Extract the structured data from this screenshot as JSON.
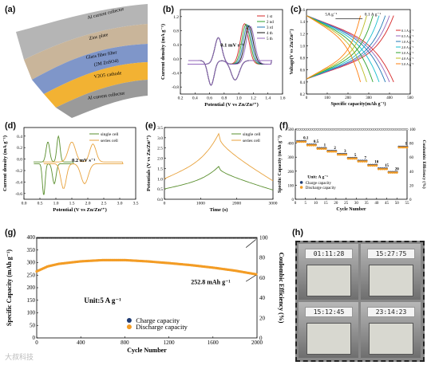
{
  "panel_labels": {
    "a": "(a)",
    "b": "(b)",
    "c": "(c)",
    "d": "(d)",
    "e": "(e)",
    "f": "(f)",
    "g": "(g)",
    "h": "(h)"
  },
  "schematic": {
    "layers": [
      "Al current collector",
      "Zinc plate",
      "Glass fiber filter",
      "(2M ZnSO4)",
      "V2O5 cathode",
      "Al current collector"
    ],
    "colors": {
      "al": "#9a9a9a",
      "zinc": "#c9b59a",
      "glass": "#7f96c9",
      "cathode": "#f2b233"
    }
  },
  "watermark": "大叔科技",
  "chart_data": [
    {
      "id": "b",
      "type": "line",
      "xlabel": "Potential (V vs Zn/Zn²⁺)",
      "ylabel": "Current density (mA g⁻¹)",
      "xlim": [
        0.2,
        1.6
      ],
      "ylim": [
        -1.0,
        1.4
      ],
      "xticks": [
        "0.2",
        "0.4",
        "0.6",
        "0.8",
        "1.0",
        "1.2",
        "1.4",
        "1.6"
      ],
      "yticks": [
        "-0.8",
        "-0.4",
        "0.0",
        "0.4",
        "0.8",
        "1.2"
      ],
      "annotation": "0.1 mV s⁻¹",
      "legend_position": "top-right",
      "series": [
        {
          "name": "1 st",
          "color": "#d62728"
        },
        {
          "name": "2 nd",
          "color": "#2ca02c"
        },
        {
          "name": "3 rd",
          "color": "#1f77b4"
        },
        {
          "name": "4 th",
          "color": "#111111"
        },
        {
          "name": "5 th",
          "color": "#9467bd"
        }
      ]
    },
    {
      "id": "c",
      "type": "line",
      "xlabel": "Specific capacity(mAh g⁻¹)",
      "ylabel": "Voltage(V vs Zn/Zn²⁺)",
      "xlim": [
        0,
        500
      ],
      "ylim": [
        0.2,
        1.6
      ],
      "xticks": [
        "0",
        "100",
        "200",
        "300",
        "400",
        "500"
      ],
      "yticks": [
        "0.2",
        "0.4",
        "0.6",
        "0.8",
        "1.0",
        "1.2",
        "1.4",
        "1.6"
      ],
      "annotation_left": "5A g⁻¹",
      "annotation_right": "0.1 A g⁻¹",
      "legend_position": "right",
      "series": [
        {
          "name": "0.1 A g⁻¹",
          "color": "#d62728",
          "cap": 420
        },
        {
          "name": "0.5 A g⁻¹",
          "color": "#9467bd",
          "cap": 400
        },
        {
          "name": "1.0 A g⁻¹",
          "color": "#1f77b4",
          "cap": 380
        },
        {
          "name": "2.0 A g⁻¹",
          "color": "#17becf",
          "cap": 350
        },
        {
          "name": "3.0 A g⁻¹",
          "color": "#2ca02c",
          "cap": 320
        },
        {
          "name": "4.0 A g⁻¹",
          "color": "#bcbd22",
          "cap": 290
        },
        {
          "name": "5.0 A g⁻¹",
          "color": "#ff7f0e",
          "cap": 260
        }
      ]
    },
    {
      "id": "d",
      "type": "line",
      "xlabel": "Potential (V vs Zn/Zn²⁺)",
      "ylabel": "Current density (mA g⁻¹)",
      "xlim": [
        0.0,
        3.5
      ],
      "ylim": [
        -0.7,
        0.55
      ],
      "xticks": [
        "0.0",
        "0.5",
        "1.0",
        "1.5",
        "2.0",
        "2.5",
        "3.0",
        "3.5"
      ],
      "yticks": [
        "-0.6",
        "-0.4",
        "-0.2",
        "0.0",
        "0.2",
        "0.4"
      ],
      "annotation": "0.2 mV s⁻¹",
      "legend_position": "top-right",
      "series": [
        {
          "name": "single cell",
          "color": "#5a8f2e"
        },
        {
          "name": "series cell",
          "color": "#e8a23c"
        }
      ]
    },
    {
      "id": "e",
      "type": "line",
      "xlabel": "Time (s)",
      "ylabel": "Potentials (V vs Zn/Zn²⁺)",
      "xlim": [
        0,
        3000
      ],
      "ylim": [
        0.0,
        3.5
      ],
      "xticks": [
        "0",
        "1000",
        "2000",
        "3000"
      ],
      "yticks": [
        "0.0",
        "0.5",
        "1.0",
        "1.5",
        "2.0",
        "2.5",
        "3.0",
        "3.5"
      ],
      "legend_position": "top-right",
      "series": [
        {
          "name": "single cell",
          "color": "#5a8f2e",
          "peak": 1.6,
          "start": 0.5
        },
        {
          "name": "series cell",
          "color": "#e8a23c",
          "peak": 3.2,
          "start": 1.0
        }
      ]
    },
    {
      "id": "f",
      "type": "scatter",
      "xlabel": "Cycle Number",
      "ylabel": "Specific Capacity (mAh g⁻¹)",
      "y2label": "Coulombic Efficiency (%)",
      "xlim": [
        0,
        55
      ],
      "ylim": [
        0,
        500
      ],
      "y2lim": [
        0,
        100
      ],
      "xticks": [
        "0",
        "5",
        "10",
        "15",
        "20",
        "25",
        "30",
        "35",
        "40",
        "45",
        "50",
        "55"
      ],
      "yticks": [
        "0",
        "100",
        "200",
        "300",
        "400",
        "500"
      ],
      "y2ticks": [
        "0",
        "20",
        "40",
        "60",
        "80",
        "100"
      ],
      "unit_text": "Unit: A g⁻¹",
      "rate_labels": [
        "0.1",
        "0.5",
        "1",
        "2",
        "3",
        "5",
        "7",
        "10",
        "15",
        "20",
        "1"
      ],
      "rate_capacity": [
        410,
        385,
        360,
        340,
        318,
        290,
        270,
        240,
        215,
        190,
        370
      ],
      "legend_position": "bottom-left",
      "series": [
        {
          "name": "Charge capacity",
          "color": "#1f3b73"
        },
        {
          "name": "Discharge capacity",
          "color": "#f39c25"
        }
      ]
    },
    {
      "id": "g",
      "type": "scatter",
      "xlabel": "Cycle Number",
      "ylabel": "Specific Capacity (mAh g⁻¹)",
      "y2label": "Coulombic Efficiency (%)",
      "xlim": [
        0,
        2000
      ],
      "ylim": [
        0,
        400
      ],
      "y2lim": [
        0,
        100
      ],
      "xticks": [
        "0",
        "400",
        "800",
        "1200",
        "1600",
        "2000"
      ],
      "yticks": [
        "0",
        "50",
        "100",
        "150",
        "200",
        "250",
        "300",
        "350",
        "400"
      ],
      "y2ticks": [
        "0",
        "20",
        "40",
        "60",
        "80",
        "100"
      ],
      "unit_text": "Unit:5 A g⁻¹",
      "end_label": "252.8 mAh g⁻¹",
      "capacity_points": [
        [
          0,
          265
        ],
        [
          100,
          285
        ],
        [
          200,
          295
        ],
        [
          400,
          305
        ],
        [
          600,
          310
        ],
        [
          800,
          310
        ],
        [
          1000,
          305
        ],
        [
          1200,
          298
        ],
        [
          1400,
          290
        ],
        [
          1600,
          280
        ],
        [
          1800,
          268
        ],
        [
          2000,
          252.8
        ]
      ],
      "efficiency": 99.5,
      "legend_position": "bottom-center",
      "series": [
        {
          "name": "Charge capacity",
          "color": "#1f3b73"
        },
        {
          "name": "Discharge capacity",
          "color": "#f39c25"
        }
      ]
    }
  ],
  "photos": {
    "clocks": [
      "01:11:28",
      "15:27:75",
      "15:12:45",
      "23:14:23"
    ]
  }
}
